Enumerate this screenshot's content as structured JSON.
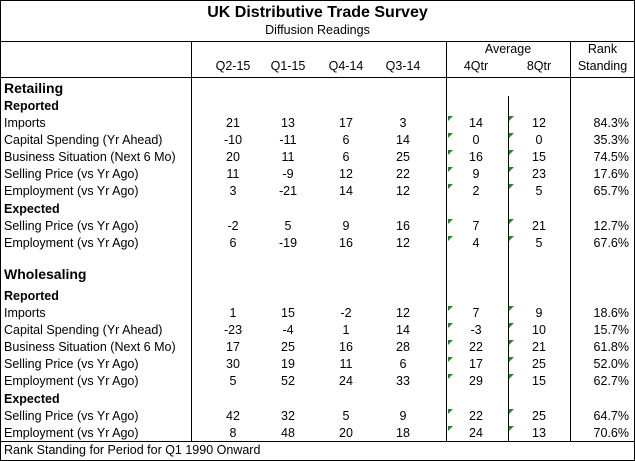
{
  "title": "UK Distributive Trade Survey",
  "subtitle": "Diffusion Readings",
  "header": {
    "average_label": "Average",
    "rank_label_1": "Rank",
    "rank_label_2": "Standing",
    "columns": [
      "Q2-15",
      "Q1-15",
      "Q4-14",
      "Q3-14",
      "4Qtr",
      "8Qtr"
    ]
  },
  "sections": [
    {
      "name": "Retailing",
      "groups": [
        {
          "name": "Reported",
          "rows": [
            {
              "label": "Imports",
              "values": [
                "21",
                "13",
                "17",
                "3",
                "14",
                "12"
              ],
              "rank": "84.3%"
            },
            {
              "label": "Capital Spending (Yr Ahead)",
              "values": [
                "-10",
                "-11",
                "6",
                "14",
                "0",
                "0"
              ],
              "rank": "35.3%"
            },
            {
              "label": "Business Situation (Next 6 Mo)",
              "values": [
                "20",
                "11",
                "6",
                "25",
                "16",
                "15"
              ],
              "rank": "74.5%"
            },
            {
              "label": "Selling Price (vs Yr Ago)",
              "values": [
                "11",
                "-9",
                "12",
                "22",
                "9",
                "23"
              ],
              "rank": "17.6%"
            },
            {
              "label": "Employment (vs Yr Ago)",
              "values": [
                "3",
                "-21",
                "14",
                "12",
                "2",
                "5"
              ],
              "rank": "65.7%"
            }
          ]
        },
        {
          "name": "Expected",
          "rows": [
            {
              "label": "Selling Price (vs Yr Ago)",
              "values": [
                "-2",
                "5",
                "9",
                "16",
                "7",
                "21"
              ],
              "rank": "12.7%"
            },
            {
              "label": "Employment (vs Yr Ago)",
              "values": [
                "6",
                "-19",
                "16",
                "12",
                "4",
                "5"
              ],
              "rank": "67.6%"
            }
          ]
        }
      ]
    },
    {
      "name": "Wholesaling",
      "groups": [
        {
          "name": "Reported",
          "rows": [
            {
              "label": "Imports",
              "values": [
                "1",
                "15",
                "-2",
                "12",
                "7",
                "9"
              ],
              "rank": "18.6%"
            },
            {
              "label": "Capital Spending (Yr Ahead)",
              "values": [
                "-23",
                "-4",
                "1",
                "14",
                "-3",
                "10"
              ],
              "rank": "15.7%"
            },
            {
              "label": "Business Situation (Next 6 Mo)",
              "values": [
                "17",
                "25",
                "16",
                "28",
                "22",
                "21"
              ],
              "rank": "61.8%"
            },
            {
              "label": "Selling Price (vs Yr Ago)",
              "values": [
                "30",
                "19",
                "11",
                "6",
                "17",
                "25"
              ],
              "rank": "52.0%"
            },
            {
              "label": "Employment (vs Yr Ago)",
              "values": [
                "5",
                "52",
                "24",
                "33",
                "29",
                "15"
              ],
              "rank": "62.7%"
            }
          ]
        },
        {
          "name": "Expected",
          "rows": [
            {
              "label": "Selling Price (vs Yr Ago)",
              "values": [
                "42",
                "32",
                "5",
                "9",
                "22",
                "25"
              ],
              "rank": "64.7%"
            },
            {
              "label": "Employment (vs Yr Ago)",
              "values": [
                "8",
                "48",
                "20",
                "18",
                "24",
                "13"
              ],
              "rank": "70.6%"
            }
          ]
        }
      ]
    }
  ],
  "footnote": "Rank Standing for Period for Q1 1990 Onward",
  "colors": {
    "border": "#000000",
    "comment_marker": "#1f8a2b",
    "background": "#ffffff"
  }
}
